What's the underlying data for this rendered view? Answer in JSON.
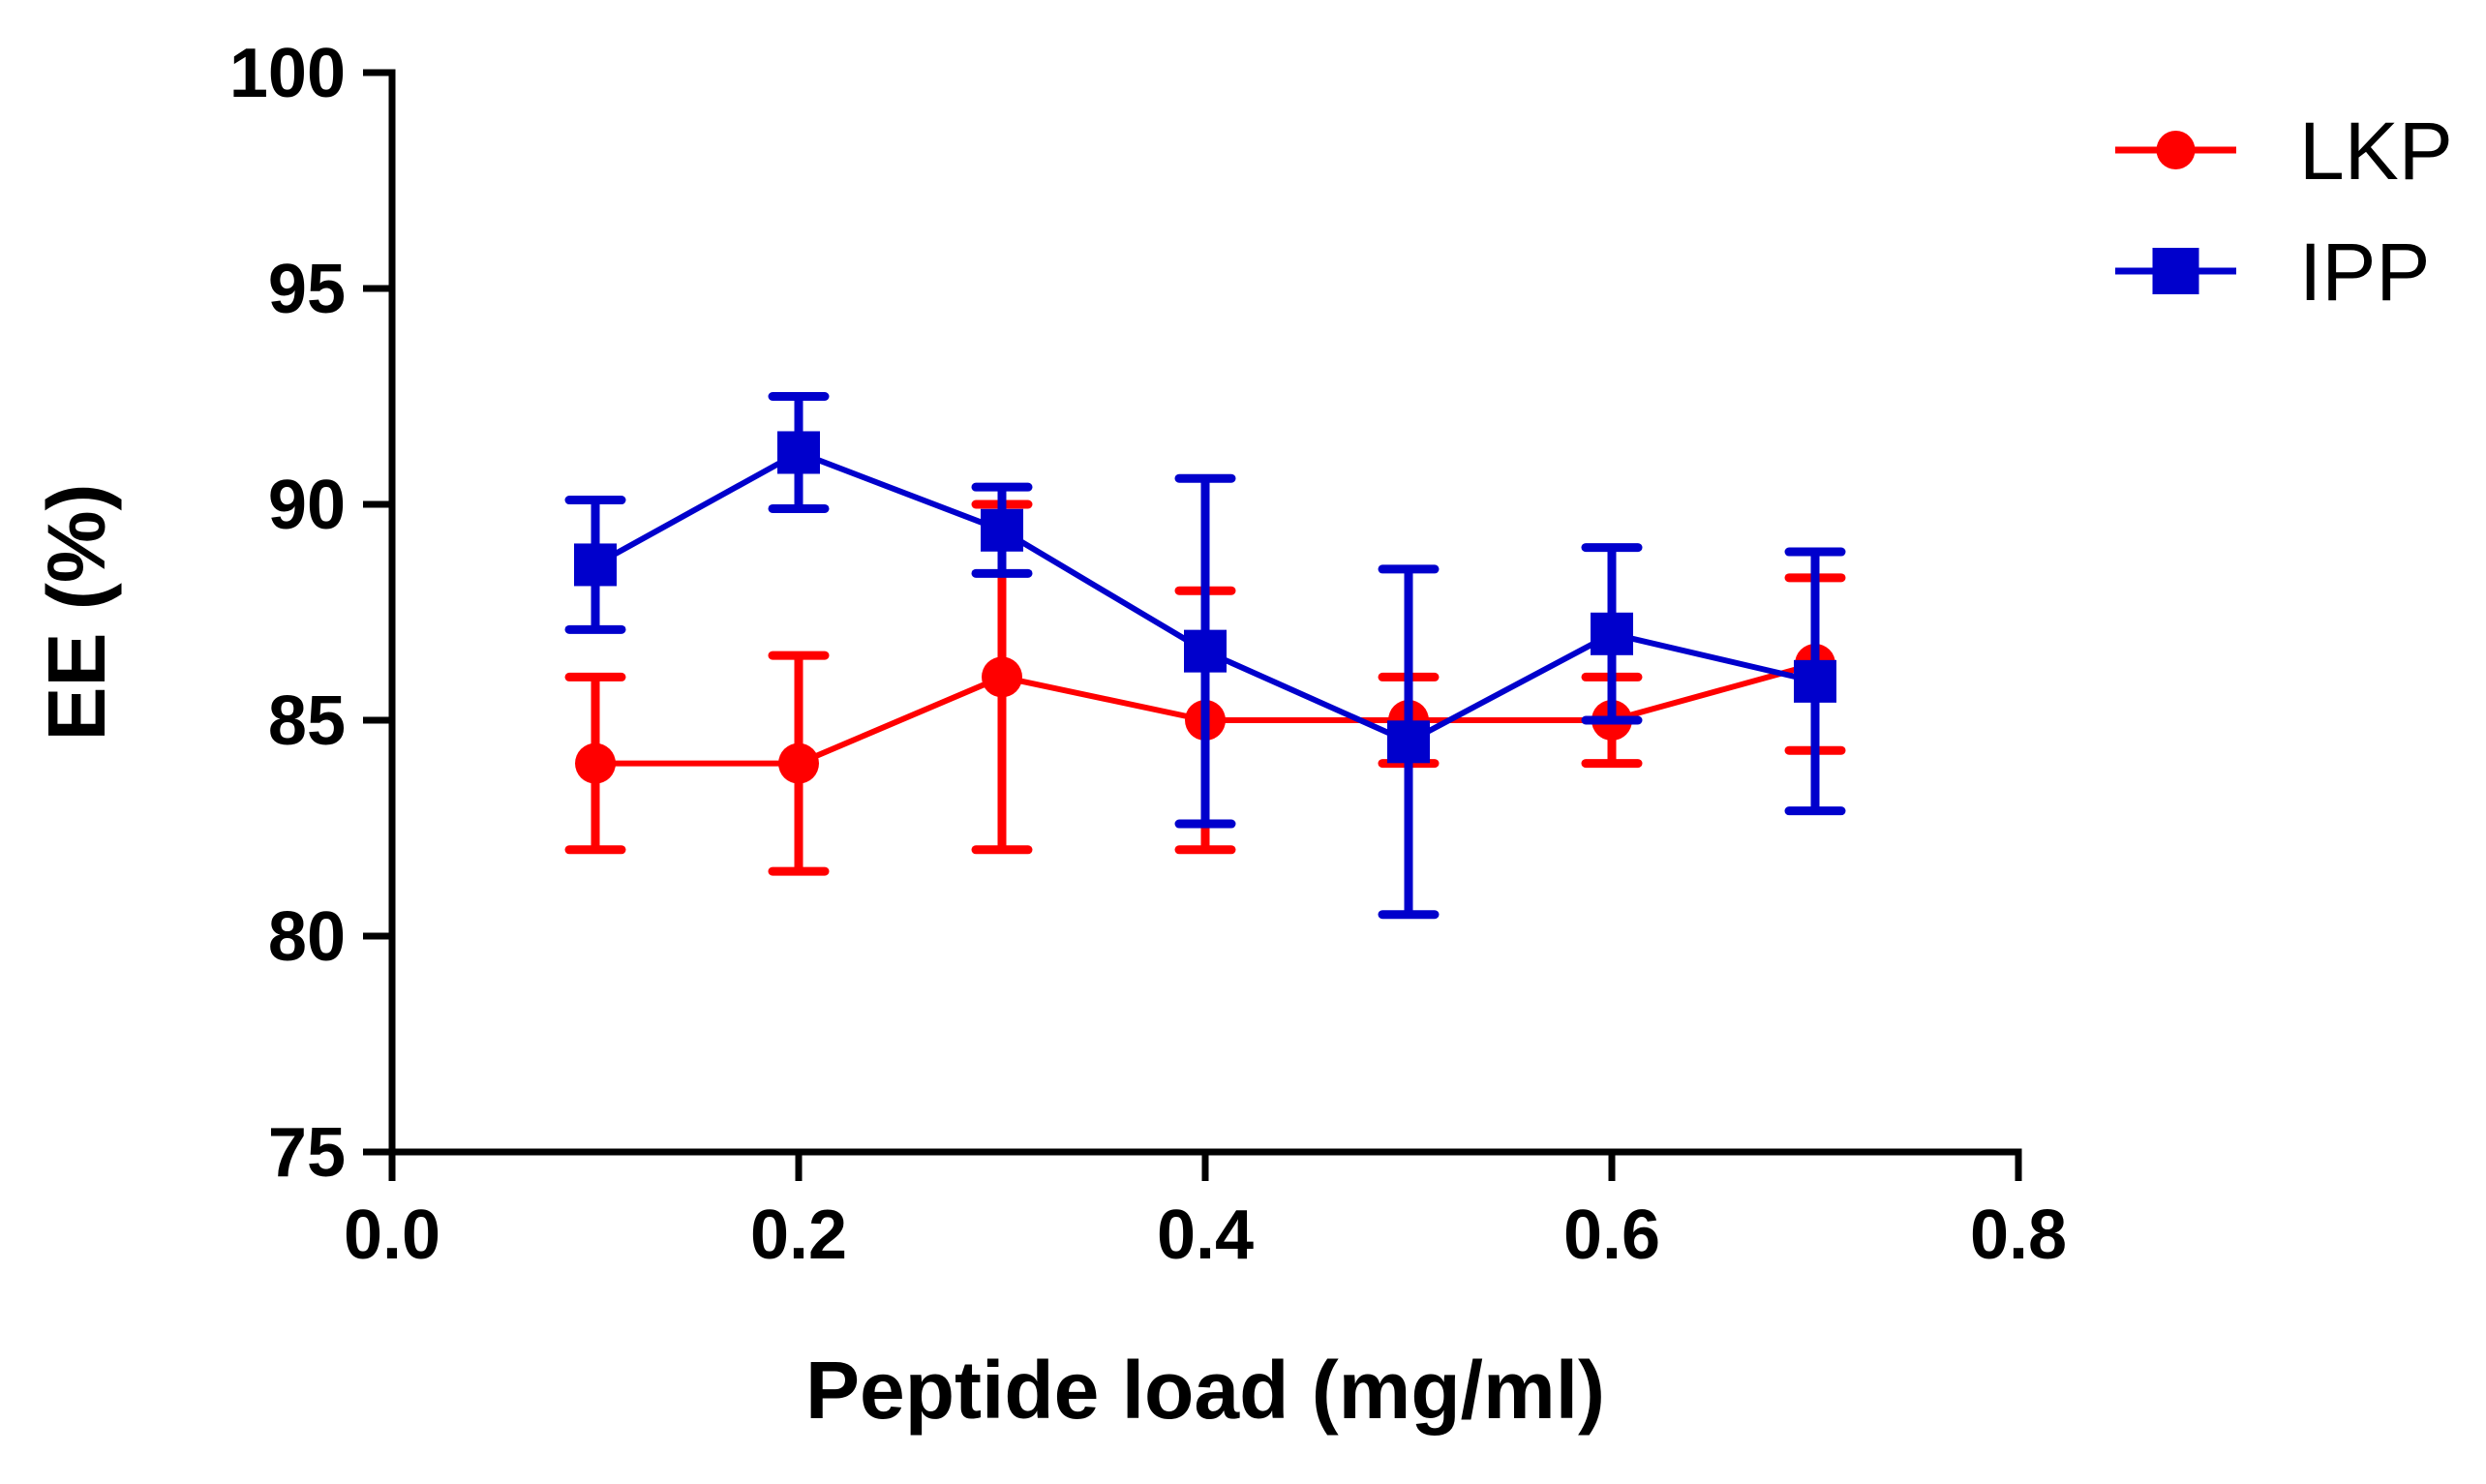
{
  "chart_data": {
    "type": "line",
    "title": "",
    "xlabel": "Peptide load (mg/ml)",
    "ylabel": "EE (%)",
    "xlim": [
      0.0,
      0.8
    ],
    "ylim": [
      75,
      100
    ],
    "xticks": [
      0.0,
      0.2,
      0.4,
      0.6,
      0.8
    ],
    "xtick_labels": [
      "0.0",
      "0.2",
      "0.4",
      "0.6",
      "0.8"
    ],
    "yticks": [
      75,
      80,
      85,
      90,
      95,
      100
    ],
    "ytick_labels": [
      "75",
      "80",
      "85",
      "90",
      "95",
      "100"
    ],
    "grid": false,
    "legend_position": "top-right",
    "series": [
      {
        "name": "LKP",
        "color": "#ff0000",
        "marker": "circle",
        "x": [
          0.1,
          0.2,
          0.3,
          0.4,
          0.5,
          0.6,
          0.7
        ],
        "y": [
          84.0,
          84.0,
          86.0,
          85.0,
          85.0,
          85.0,
          86.3
        ],
        "error": [
          2.0,
          2.5,
          4.0,
          3.0,
          1.0,
          1.0,
          2.0
        ]
      },
      {
        "name": "IPP",
        "color": "#0000cc",
        "marker": "square",
        "x": [
          0.1,
          0.2,
          0.3,
          0.4,
          0.5,
          0.6,
          0.7
        ],
        "y": [
          88.6,
          91.2,
          89.4,
          86.6,
          84.5,
          87.0,
          85.9
        ],
        "error": [
          1.5,
          1.3,
          1.0,
          4.0,
          4.0,
          2.0,
          3.0
        ]
      }
    ]
  }
}
